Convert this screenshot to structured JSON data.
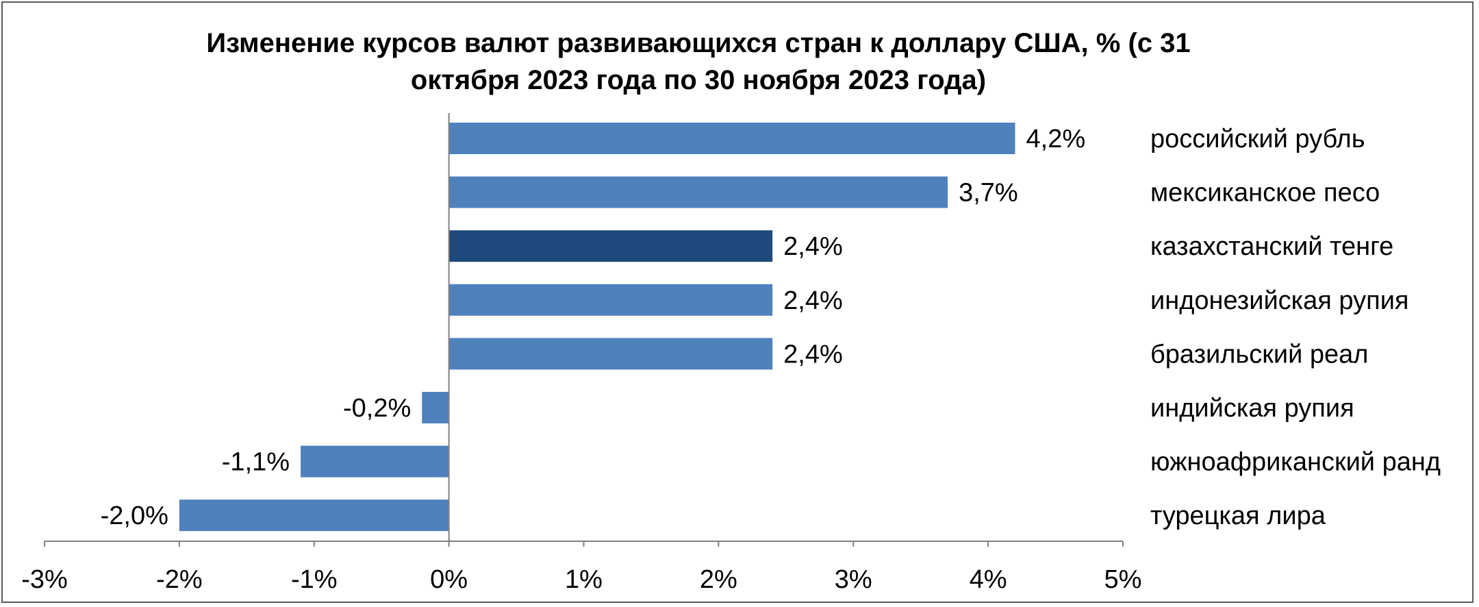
{
  "chart_data": {
    "type": "bar",
    "orientation": "horizontal",
    "title_lines": [
      "Изменение курсов валют развивающихся стран к доллару США, % (с 31",
      "октября 2023 года по 30 ноября 2023 года)"
    ],
    "categories": [
      "российский рубль",
      "мексиканское песо",
      "казахстанский тенге",
      "индонезийская рупия",
      "бразильский реал",
      "индийская рупия",
      "южноафриканский ранд",
      "турецкая лира"
    ],
    "values": [
      4.2,
      3.7,
      2.4,
      2.4,
      2.4,
      -0.2,
      -1.1,
      -2.0
    ],
    "value_labels": [
      "4,2%",
      "3,7%",
      "2,4%",
      "2,4%",
      "2,4%",
      "-0,2%",
      "-1,1%",
      "-2,0%"
    ],
    "highlight": "казахстанский тенге",
    "colors": {
      "bar": "#4f81bd",
      "highlight": "#1f497d"
    },
    "xlim": [
      -3,
      5
    ],
    "x_ticks": [
      "-3%",
      "-2%",
      "-1%",
      "0%",
      "1%",
      "2%",
      "3%",
      "4%",
      "5%"
    ],
    "grid": false,
    "legend": "none"
  }
}
